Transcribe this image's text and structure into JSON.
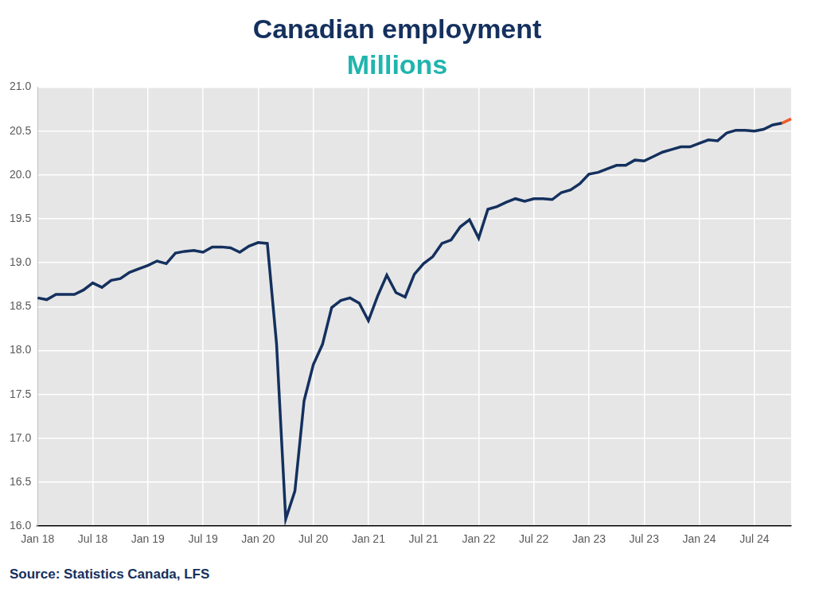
{
  "chart_data": {
    "type": "line",
    "title": "Canadian employment",
    "subtitle": "Millions",
    "source": "Source: Statistics Canada, LFS",
    "categories": [
      "Jan 18",
      null,
      null,
      null,
      null,
      null,
      "Jul 18",
      null,
      null,
      null,
      null,
      null,
      "Jan 19",
      null,
      null,
      null,
      null,
      null,
      "Jul 19",
      null,
      null,
      null,
      null,
      null,
      "Jan 20",
      null,
      null,
      null,
      null,
      null,
      "Jul 20",
      null,
      null,
      null,
      null,
      null,
      "Jan 21",
      null,
      null,
      null,
      null,
      null,
      "Jul 21",
      null,
      null,
      null,
      null,
      null,
      "Jan 22",
      null,
      null,
      null,
      null,
      null,
      "Jul 22",
      null,
      null,
      null,
      null,
      null,
      "Jan 23",
      null,
      null,
      null,
      null,
      null,
      "Jul 23",
      null,
      null,
      null,
      null,
      null,
      "Jan 24",
      null,
      null,
      null,
      null,
      null,
      "Jul 24",
      null,
      null,
      null,
      null
    ],
    "series": [
      {
        "color": "#14305e",
        "values": [
          18.6,
          18.58,
          18.64,
          18.64,
          18.64,
          18.69,
          18.77,
          18.72,
          18.8,
          18.82,
          18.89,
          18.93,
          18.97,
          19.02,
          18.99,
          19.11,
          19.13,
          19.14,
          19.12,
          19.18,
          19.18,
          19.17,
          19.12,
          19.19,
          19.23,
          19.22,
          18.08,
          16.08,
          16.4,
          17.43,
          17.84,
          18.07,
          18.49,
          18.57,
          18.6,
          18.54,
          18.34,
          18.62,
          18.86,
          18.66,
          18.61,
          18.87,
          18.99,
          19.07,
          19.22,
          19.26,
          19.41,
          19.49,
          19.28,
          19.61,
          19.64,
          19.69,
          19.73,
          19.7,
          19.73,
          19.73,
          19.72,
          19.8,
          19.83,
          19.9,
          20.01,
          20.03,
          20.07,
          20.11,
          20.11,
          20.17,
          20.16,
          20.21,
          20.26,
          20.29,
          20.32,
          20.32,
          20.36,
          20.4,
          20.39,
          20.48,
          20.51,
          20.51,
          20.5,
          20.52,
          20.57,
          20.59,
          null
        ]
      },
      {
        "color": "#f05a28",
        "values": [
          null,
          null,
          null,
          null,
          null,
          null,
          null,
          null,
          null,
          null,
          null,
          null,
          null,
          null,
          null,
          null,
          null,
          null,
          null,
          null,
          null,
          null,
          null,
          null,
          null,
          null,
          null,
          null,
          null,
          null,
          null,
          null,
          null,
          null,
          null,
          null,
          null,
          null,
          null,
          null,
          null,
          null,
          null,
          null,
          null,
          null,
          null,
          null,
          null,
          null,
          null,
          null,
          null,
          null,
          null,
          null,
          null,
          null,
          null,
          null,
          null,
          null,
          null,
          null,
          null,
          null,
          null,
          null,
          null,
          null,
          null,
          null,
          null,
          null,
          null,
          null,
          null,
          null,
          null,
          null,
          null,
          20.59,
          20.64
        ]
      }
    ],
    "ylim": [
      16,
      21
    ],
    "yticks": [
      {
        "value": 16,
        "label": "16.0"
      },
      16.5,
      {
        "value": 17,
        "label": "17.0"
      },
      17.5,
      {
        "value": 18,
        "label": "18.0"
      },
      18.5,
      {
        "value": 19,
        "label": "19.0"
      },
      19.5,
      {
        "value": 20,
        "label": "20.0"
      },
      20.5,
      {
        "value": 21,
        "label": "21.0"
      }
    ],
    "grid": true
  }
}
